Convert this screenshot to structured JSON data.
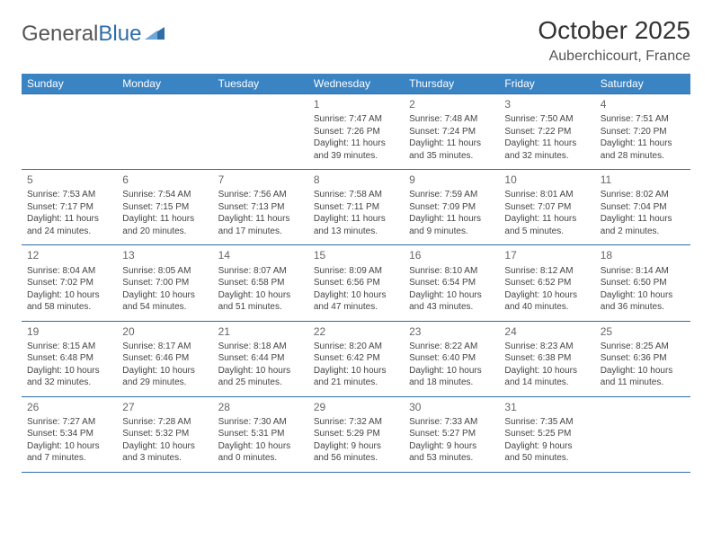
{
  "brand": {
    "part1": "General",
    "part2": "Blue"
  },
  "title": "October 2025",
  "location": "Auberchicourt, France",
  "colors": {
    "header_bg": "#3b84c4",
    "header_text": "#ffffff",
    "rule": "#2f6da8",
    "text": "#444444",
    "daynum": "#666666",
    "brand_gray": "#555555",
    "brand_blue": "#2f6da8",
    "background": "#ffffff"
  },
  "typography": {
    "title_fontsize": 28,
    "location_fontsize": 16,
    "dayheader_fontsize": 12,
    "cell_fontsize": 10,
    "daynum_fontsize": 12
  },
  "day_headers": [
    "Sunday",
    "Monday",
    "Tuesday",
    "Wednesday",
    "Thursday",
    "Friday",
    "Saturday"
  ],
  "weeks": [
    [
      null,
      null,
      null,
      {
        "n": "1",
        "sr": "7:47 AM",
        "ss": "7:26 PM",
        "dl": "11 hours and 39 minutes."
      },
      {
        "n": "2",
        "sr": "7:48 AM",
        "ss": "7:24 PM",
        "dl": "11 hours and 35 minutes."
      },
      {
        "n": "3",
        "sr": "7:50 AM",
        "ss": "7:22 PM",
        "dl": "11 hours and 32 minutes."
      },
      {
        "n": "4",
        "sr": "7:51 AM",
        "ss": "7:20 PM",
        "dl": "11 hours and 28 minutes."
      }
    ],
    [
      {
        "n": "5",
        "sr": "7:53 AM",
        "ss": "7:17 PM",
        "dl": "11 hours and 24 minutes."
      },
      {
        "n": "6",
        "sr": "7:54 AM",
        "ss": "7:15 PM",
        "dl": "11 hours and 20 minutes."
      },
      {
        "n": "7",
        "sr": "7:56 AM",
        "ss": "7:13 PM",
        "dl": "11 hours and 17 minutes."
      },
      {
        "n": "8",
        "sr": "7:58 AM",
        "ss": "7:11 PM",
        "dl": "11 hours and 13 minutes."
      },
      {
        "n": "9",
        "sr": "7:59 AM",
        "ss": "7:09 PM",
        "dl": "11 hours and 9 minutes."
      },
      {
        "n": "10",
        "sr": "8:01 AM",
        "ss": "7:07 PM",
        "dl": "11 hours and 5 minutes."
      },
      {
        "n": "11",
        "sr": "8:02 AM",
        "ss": "7:04 PM",
        "dl": "11 hours and 2 minutes."
      }
    ],
    [
      {
        "n": "12",
        "sr": "8:04 AM",
        "ss": "7:02 PM",
        "dl": "10 hours and 58 minutes."
      },
      {
        "n": "13",
        "sr": "8:05 AM",
        "ss": "7:00 PM",
        "dl": "10 hours and 54 minutes."
      },
      {
        "n": "14",
        "sr": "8:07 AM",
        "ss": "6:58 PM",
        "dl": "10 hours and 51 minutes."
      },
      {
        "n": "15",
        "sr": "8:09 AM",
        "ss": "6:56 PM",
        "dl": "10 hours and 47 minutes."
      },
      {
        "n": "16",
        "sr": "8:10 AM",
        "ss": "6:54 PM",
        "dl": "10 hours and 43 minutes."
      },
      {
        "n": "17",
        "sr": "8:12 AM",
        "ss": "6:52 PM",
        "dl": "10 hours and 40 minutes."
      },
      {
        "n": "18",
        "sr": "8:14 AM",
        "ss": "6:50 PM",
        "dl": "10 hours and 36 minutes."
      }
    ],
    [
      {
        "n": "19",
        "sr": "8:15 AM",
        "ss": "6:48 PM",
        "dl": "10 hours and 32 minutes."
      },
      {
        "n": "20",
        "sr": "8:17 AM",
        "ss": "6:46 PM",
        "dl": "10 hours and 29 minutes."
      },
      {
        "n": "21",
        "sr": "8:18 AM",
        "ss": "6:44 PM",
        "dl": "10 hours and 25 minutes."
      },
      {
        "n": "22",
        "sr": "8:20 AM",
        "ss": "6:42 PM",
        "dl": "10 hours and 21 minutes."
      },
      {
        "n": "23",
        "sr": "8:22 AM",
        "ss": "6:40 PM",
        "dl": "10 hours and 18 minutes."
      },
      {
        "n": "24",
        "sr": "8:23 AM",
        "ss": "6:38 PM",
        "dl": "10 hours and 14 minutes."
      },
      {
        "n": "25",
        "sr": "8:25 AM",
        "ss": "6:36 PM",
        "dl": "10 hours and 11 minutes."
      }
    ],
    [
      {
        "n": "26",
        "sr": "7:27 AM",
        "ss": "5:34 PM",
        "dl": "10 hours and 7 minutes."
      },
      {
        "n": "27",
        "sr": "7:28 AM",
        "ss": "5:32 PM",
        "dl": "10 hours and 3 minutes."
      },
      {
        "n": "28",
        "sr": "7:30 AM",
        "ss": "5:31 PM",
        "dl": "10 hours and 0 minutes."
      },
      {
        "n": "29",
        "sr": "7:32 AM",
        "ss": "5:29 PM",
        "dl": "9 hours and 56 minutes."
      },
      {
        "n": "30",
        "sr": "7:33 AM",
        "ss": "5:27 PM",
        "dl": "9 hours and 53 minutes."
      },
      {
        "n": "31",
        "sr": "7:35 AM",
        "ss": "5:25 PM",
        "dl": "9 hours and 50 minutes."
      },
      null
    ]
  ],
  "labels": {
    "sunrise": "Sunrise:",
    "sunset": "Sunset:",
    "daylight": "Daylight:"
  }
}
